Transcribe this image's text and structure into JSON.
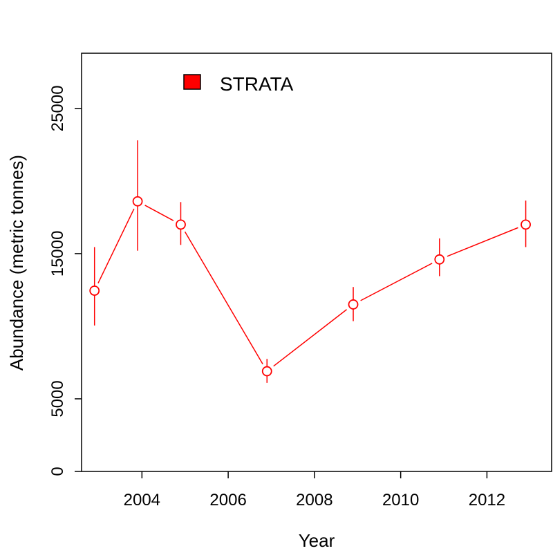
{
  "chart_data": {
    "type": "line",
    "title": "",
    "xlabel": "Year",
    "ylabel": "Abundance (metric tonnes)",
    "xlim": [
      2002.6,
      2013.5
    ],
    "ylim": [
      0,
      28800
    ],
    "x_ticks": [
      2004,
      2006,
      2008,
      2010,
      2012
    ],
    "y_ticks": [
      0,
      5000,
      15000,
      25000
    ],
    "legend": {
      "position": "top-left",
      "entries": [
        "STRATA"
      ]
    },
    "grid": false,
    "series": [
      {
        "name": "STRATA",
        "color": "#ff0000",
        "x": [
          2002.9,
          2003.9,
          2004.9,
          2006.9,
          2008.9,
          2010.9,
          2012.9
        ],
        "y": [
          12450,
          18600,
          17000,
          6900,
          11500,
          14600,
          17000
        ],
        "y_low": [
          10050,
          15200,
          15600,
          6100,
          10350,
          13450,
          15450
        ],
        "y_high": [
          15450,
          22800,
          18550,
          7750,
          12700,
          16050,
          18650
        ]
      }
    ]
  }
}
